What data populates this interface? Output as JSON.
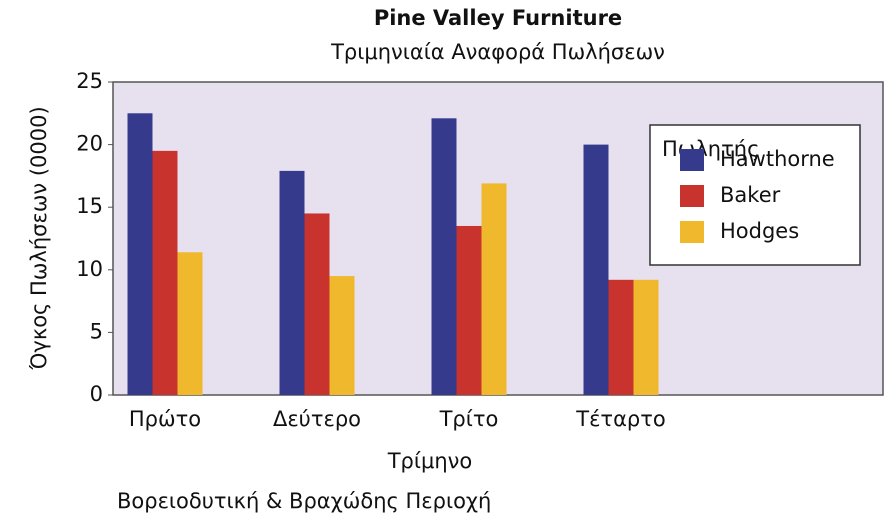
{
  "chart_data": {
    "type": "bar",
    "title": "Pine Valley Furniture",
    "subtitle": "Τριμηνιαία Αναφορά Πωλήσεων",
    "x_label": "Τρίμηνο",
    "y_label": "Όγκος Πωλήσεων (0000)",
    "annotation": "Βορειοδυτική & Βραχώδης Περιοχή",
    "legend_title": "Πωλητής",
    "legend": "upper right",
    "categories": [
      "Πρώτο",
      "Δεύτερο",
      "Τρίτο",
      "Τέταρτο"
    ],
    "series": [
      {
        "name": "Hawthorne",
        "color": "#353a8c",
        "values": [
          22.5,
          17.9,
          22.1,
          20.0
        ]
      },
      {
        "name": "Baker",
        "color": "#c8332d",
        "values": [
          19.5,
          14.5,
          13.5,
          9.2
        ]
      },
      {
        "name": "Hodges",
        "color": "#f0b82d",
        "values": [
          11.4,
          9.5,
          16.9,
          9.2
        ]
      }
    ],
    "ylim": [
      0,
      25
    ],
    "yticks": [
      0,
      5,
      10,
      15,
      20,
      25
    ]
  }
}
